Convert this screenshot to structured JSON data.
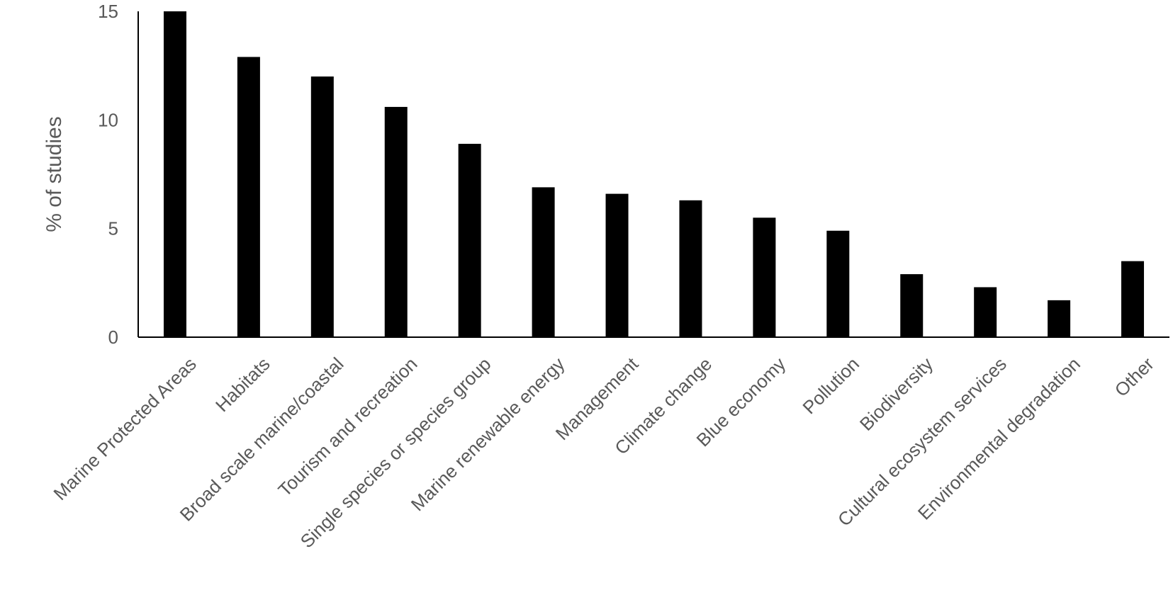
{
  "chart_data": {
    "type": "bar",
    "title": "",
    "xlabel": "",
    "ylabel": "% of studies",
    "ylim": [
      0,
      15
    ],
    "yticks": [
      0,
      5,
      10,
      15
    ],
    "grid": false,
    "legend": "none",
    "bar_color": "#000000",
    "axis_color": "#000000",
    "text_color": "#595959",
    "categories": [
      "Marine Protected Areas",
      "Habitats",
      "Broad scale marine/coastal",
      "Tourism and recreation",
      "Single species or species group",
      "Marine renewable energy",
      "Management",
      "Climate change",
      "Blue economy",
      "Pollution",
      "Biodiversity",
      "Cultural ecosystem services",
      "Environmental degradation",
      "Other"
    ],
    "values": [
      15.0,
      12.9,
      12.0,
      10.6,
      8.9,
      6.9,
      6.6,
      6.3,
      5.5,
      4.9,
      2.9,
      2.3,
      1.7,
      3.5
    ]
  }
}
